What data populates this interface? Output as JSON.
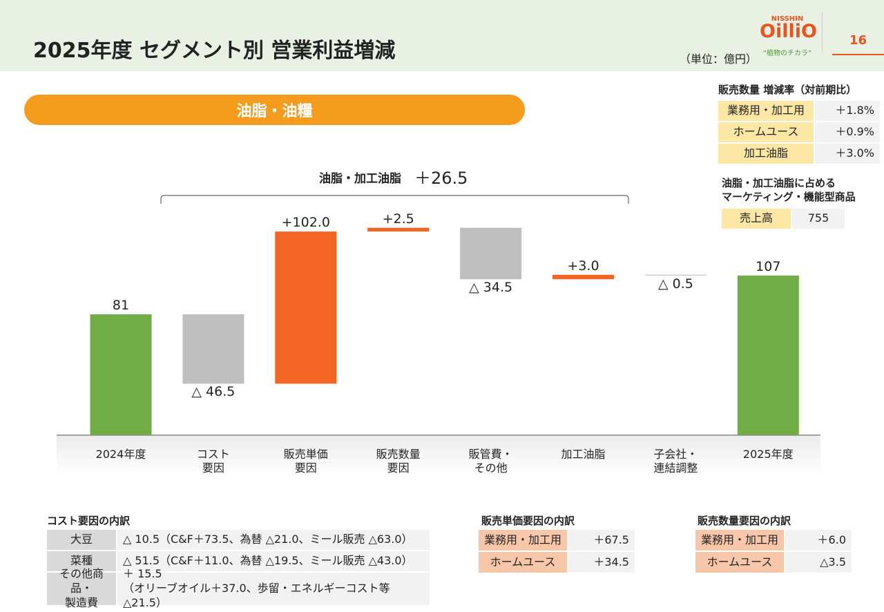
{
  "header": {
    "title": "2025年度 セグメント別 営業利益増減",
    "unit": "（単位：億円）",
    "page": "16",
    "logo": {
      "brand": "NISSHIN",
      "name": "OilliO",
      "tagline": "“植物のチカラ”"
    }
  },
  "section": "油脂・油糧",
  "chart_data": {
    "type": "waterfall",
    "annotation": {
      "label": "油脂・加工油脂",
      "value": "＋26.5"
    },
    "categories": [
      "2024年度",
      "コスト\n要因",
      "販売単価\n要因",
      "販売数量\n要因",
      "販管費・\nその他",
      "加工油脂",
      "子会社・\n連結調整",
      "2025年度"
    ],
    "values": [
      81,
      -46.5,
      102.0,
      2.5,
      -34.5,
      3.0,
      -0.5,
      107
    ],
    "value_labels": [
      "81",
      "△ 46.5",
      "+102.0",
      "+2.5",
      "△ 34.5",
      "+3.0",
      "△ 0.5",
      "107"
    ],
    "colors": {
      "total": "#70ad47",
      "increase": "#f26522",
      "decrease": "#bfbfbf"
    }
  },
  "volume_growth": {
    "title": "販売数量 増減率（対前期比）",
    "rows": [
      [
        "業務用・加工用",
        "＋1.8%"
      ],
      [
        "ホームユース",
        "＋0.9%"
      ],
      [
        "加工油脂",
        "＋3.0%"
      ]
    ]
  },
  "marketing": {
    "title": "油脂・加工油脂に占める\nマーケティング・機能型商品",
    "rows": [
      [
        "売上高",
        "755"
      ]
    ]
  },
  "cost_breakdown": {
    "title": "コスト要因の内訳",
    "rows": [
      [
        "大豆",
        "△ 10.5（C&F＋73.5、為替 △21.0、ミール販売 △63.0）"
      ],
      [
        "菜種",
        "△ 51.5（C&F＋11.0、為替 △19.5、ミール販売 △43.0）"
      ],
      [
        "その他商品・\n製造費",
        "＋ 15.5\n（オリーブオイル＋37.0、歩留・エネルギーコスト等△21.5）"
      ]
    ]
  },
  "price_breakdown": {
    "title": "販売単価要因の内訳",
    "rows": [
      [
        "業務用・加工用",
        "＋67.5"
      ],
      [
        "ホームユース",
        "＋34.5"
      ]
    ]
  },
  "volume_breakdown": {
    "title": "販売数量要因の内訳",
    "rows": [
      [
        "業務用・加工用",
        "＋6.0"
      ],
      [
        "ホームユース",
        "△3.5"
      ]
    ]
  }
}
